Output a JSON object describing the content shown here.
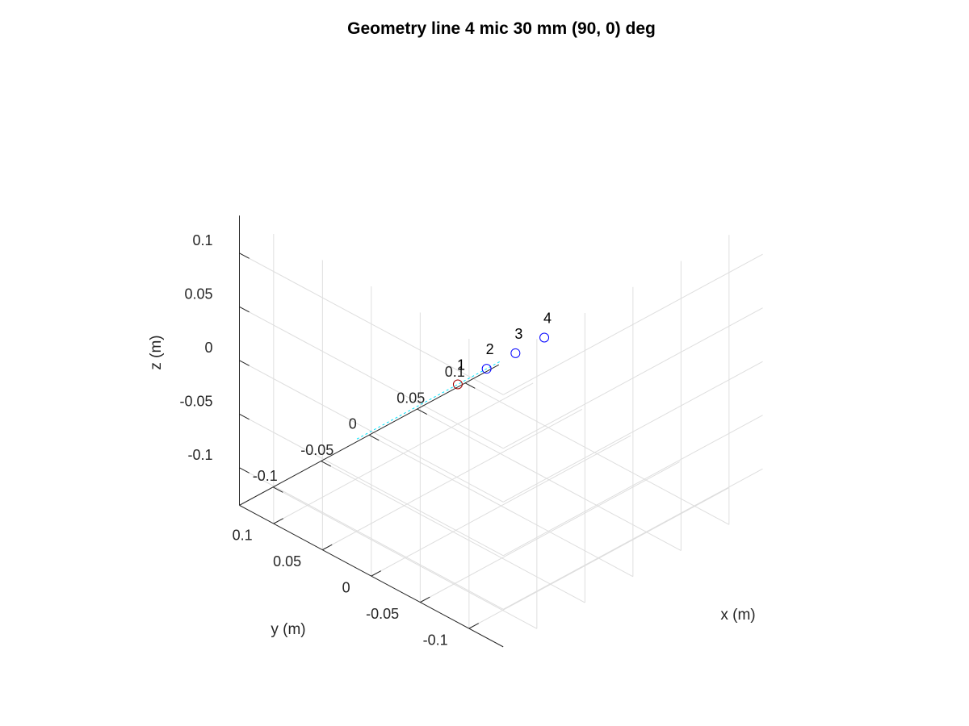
{
  "chart_data": {
    "type": "scatter",
    "title": "Geometry line 4 mic 30 mm (90, 0) deg",
    "xlabel": "x (m)",
    "ylabel": "y (m)",
    "zlabel": "z (m)",
    "xlim": [
      -0.135,
      0.135
    ],
    "ylim": [
      -0.135,
      0.135
    ],
    "zlim": [
      -0.135,
      0.135
    ],
    "grid": true,
    "view": "3d",
    "x_ticks": [
      {
        "value": -0.1,
        "label": "-0.1"
      },
      {
        "value": -0.05,
        "label": "-0.05"
      },
      {
        "value": 0,
        "label": "0"
      },
      {
        "value": 0.05,
        "label": "0.05"
      },
      {
        "value": 0.1,
        "label": "0.1"
      }
    ],
    "y_ticks": [
      {
        "value": -0.1,
        "label": "-0.1"
      },
      {
        "value": -0.05,
        "label": "-0.05"
      },
      {
        "value": 0,
        "label": "0"
      },
      {
        "value": 0.05,
        "label": "0.05"
      },
      {
        "value": 0.1,
        "label": "0.1"
      }
    ],
    "z_ticks": [
      {
        "value": -0.1,
        "label": "-0.1"
      },
      {
        "value": -0.05,
        "label": "-0.05"
      },
      {
        "value": 0,
        "label": "0"
      },
      {
        "value": 0.05,
        "label": "0.05"
      },
      {
        "value": 0.1,
        "label": "0.1"
      }
    ],
    "points": [
      {
        "label": "1",
        "x": -0.045,
        "y": 0,
        "z": 0,
        "color": "#a00000"
      },
      {
        "label": "2",
        "x": -0.015,
        "y": 0,
        "z": 0,
        "color": "#0000ff"
      },
      {
        "label": "3",
        "x": 0.015,
        "y": 0,
        "z": 0,
        "color": "#0000ff"
      },
      {
        "label": "4",
        "x": 0.045,
        "y": 0,
        "z": 0,
        "color": "#0000ff"
      }
    ],
    "direction_line": {
      "color": "#00e5ff",
      "from": {
        "x": -0.15,
        "y": 0,
        "z": 0
      },
      "to": {
        "x": 0,
        "y": 0,
        "z": 0
      }
    }
  },
  "colors": {
    "grid": "#dedede",
    "axis": "#262626",
    "text": "#262626"
  }
}
